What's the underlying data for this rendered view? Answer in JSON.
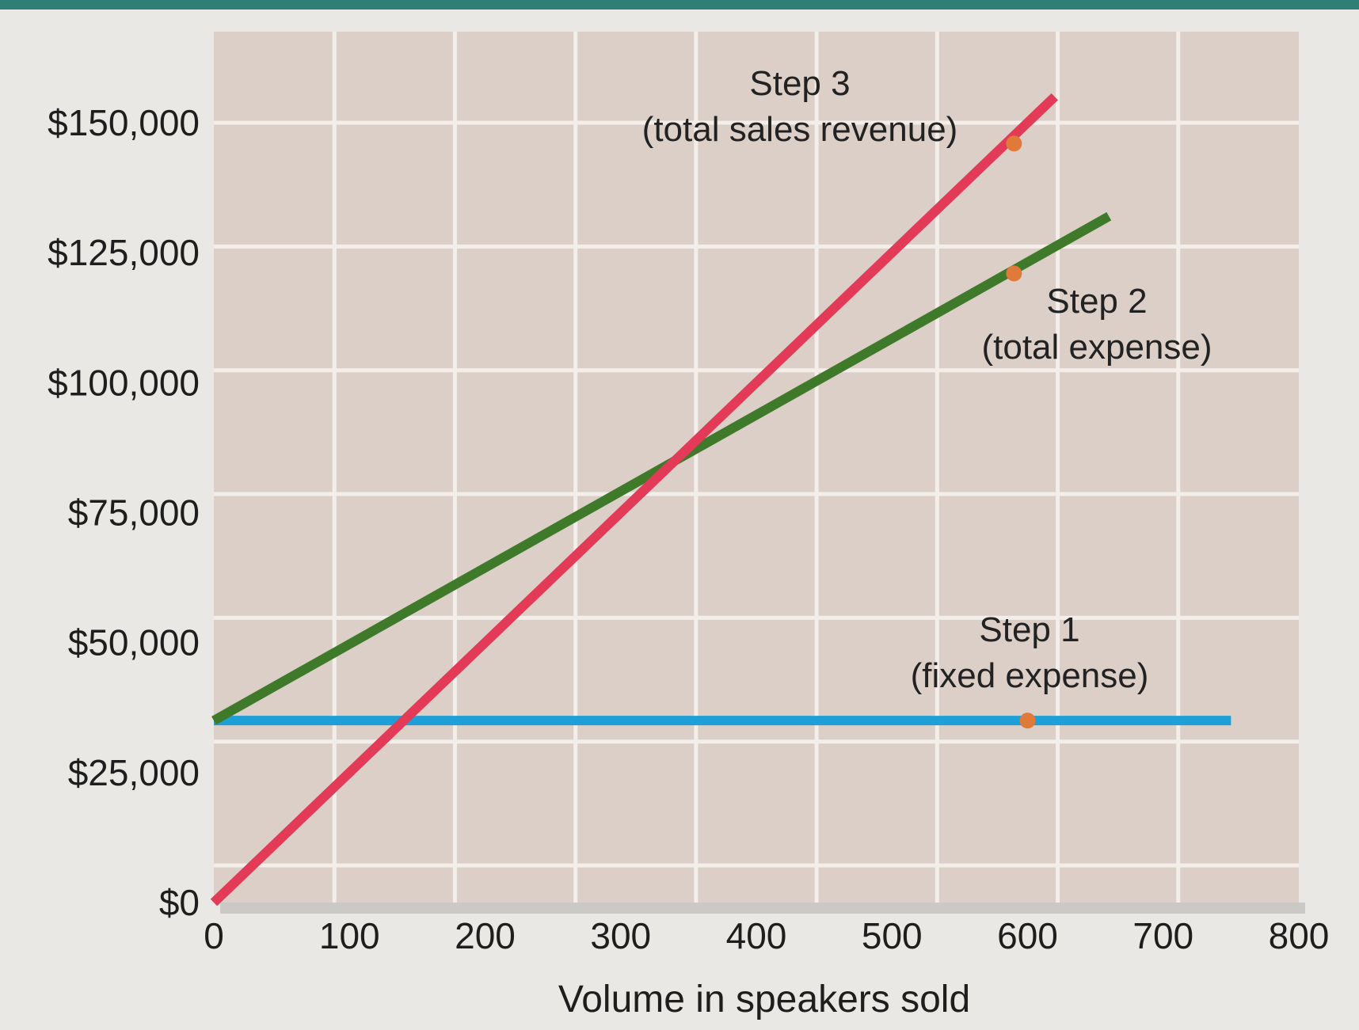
{
  "chart_data": {
    "type": "line",
    "title": "",
    "xlabel": "Volume in speakers sold",
    "ylabel": "",
    "xlim": [
      0,
      800
    ],
    "ylim": [
      0,
      150000
    ],
    "x_ticks": [
      0,
      100,
      200,
      300,
      400,
      500,
      600,
      700,
      800
    ],
    "x_tick_labels": [
      "0",
      "100",
      "200",
      "300",
      "400",
      "500",
      "600",
      "700",
      "800"
    ],
    "y_ticks": [
      0,
      25000,
      50000,
      75000,
      100000,
      125000,
      150000
    ],
    "y_tick_labels": [
      "$0",
      "$25,000",
      "$50,000",
      "$75,000",
      "$100,000",
      "$125,000",
      "$150,000"
    ],
    "grid": true,
    "series": [
      {
        "key": "fixed",
        "color": "#1f9fd8",
        "points": [
          [
            0,
            35000
          ],
          [
            750,
            35000
          ]
        ],
        "marker": [
          600,
          35000
        ],
        "annotation": [
          "Step 1",
          "(fixed expense)"
        ]
      },
      {
        "key": "total_expense",
        "color": "#3f7a2a",
        "points": [
          [
            0,
            35000
          ],
          [
            660,
            132000
          ]
        ],
        "marker": [
          590,
          121000
        ],
        "annotation": [
          "Step 2",
          "(total expense)"
        ]
      },
      {
        "key": "revenue",
        "color": "#e23a57",
        "points": [
          [
            0,
            0
          ],
          [
            620,
            155000
          ]
        ],
        "marker": [
          590,
          146000
        ],
        "annotation": [
          "Step 3",
          "(total sales revenue)"
        ]
      }
    ],
    "marker_color": "#e07a3a",
    "plot_background": "#dccfc8",
    "grid_color": "#f4eeea"
  }
}
